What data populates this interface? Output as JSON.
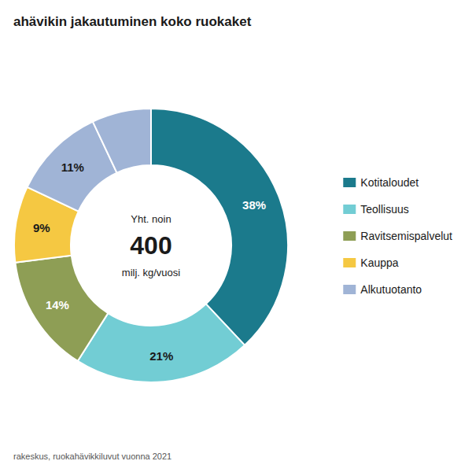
{
  "chart_data": {
    "type": "pie",
    "title": "ahävikin jakautuminen koko ruokaket",
    "source": "rakeskus, ruokahävikkiluvut vuonna 2021",
    "categories": [
      "Kotitaloudet",
      "Teollisuus",
      "Ravitsemispalvelut",
      "Kauppa",
      "Alkutuotanto",
      null
    ],
    "values": [
      38,
      21,
      14,
      9,
      11,
      7
    ],
    "value_labels": [
      "38%",
      "21%",
      "14%",
      "9%",
      "11%",
      null
    ],
    "colors": [
      "#1b7a8c",
      "#72cdd4",
      "#8e9e55",
      "#f5c842",
      "#a0b4d6",
      "#a0b4d6"
    ],
    "data_labels": true,
    "legend": "right",
    "annotations": [
      "Yht. noin",
      "400",
      "milj. kg/vuosi"
    ]
  }
}
